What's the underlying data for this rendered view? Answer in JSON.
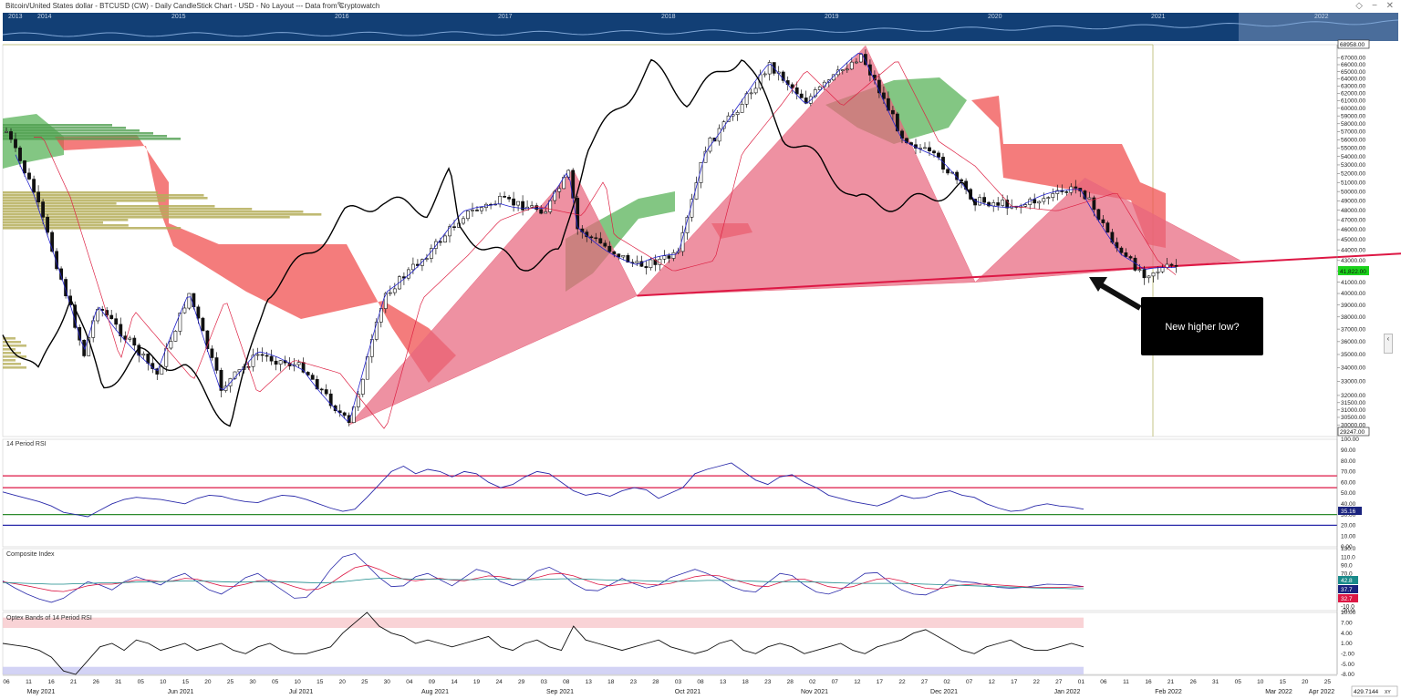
{
  "window": {
    "title": "Bitcoin/United States dollar - BTCUSD (CW) - Daily CandleStick Chart - USD - No Layout --- Data from Cryptowatch",
    "overview_years": [
      "2013",
      "2014",
      "2015",
      "2016",
      "2017",
      "2018",
      "2019",
      "2020",
      "2021",
      "2022"
    ]
  },
  "colors": {
    "bull_cloud": "#5ab35a",
    "bear_cloud": "#f05050",
    "pattern": "#e8677e",
    "support_line": "#dd1744",
    "rsi_band": "#dd1744",
    "price_badge": "#1bd21b",
    "lagging": "#000000",
    "tenkan": "#2222cc",
    "kijun": "#dd2244"
  },
  "annotation": {
    "text": "New higher low?"
  },
  "chart_data": [
    {
      "type": "candlestick",
      "title": "Bitcoin/United States dollar - BTCUSD (CW) - Daily CandleStick Chart - USD",
      "x_start": "2021-05-06",
      "x_end": "2022-04-11",
      "y_scale": "log",
      "ylim": [
        29247.0,
        68958.0
      ],
      "y_ticks": [
        "30000.00",
        "30500.00",
        "31000.00",
        "31500.00",
        "32000.00",
        "33000.00",
        "34000.00",
        "35000.00",
        "36000.00",
        "37000.00",
        "38000.00",
        "39000.00",
        "40000.00",
        "41000.00",
        "42000.00",
        "43000.00",
        "44000.00",
        "45000.00",
        "46000.00",
        "47000.00",
        "48000.00",
        "49000.00",
        "50000.00",
        "51000.00",
        "52000.00",
        "53000.00",
        "54000.00",
        "55000.00",
        "56000.00",
        "57000.00",
        "58000.00",
        "59000.00",
        "60000.00",
        "61000.00",
        "62000.00",
        "63000.00",
        "64000.00",
        "65000.00",
        "66000.00",
        "67000.00"
      ],
      "high_label": "68958.00",
      "low_label": "29247.00",
      "last_price_label": "41,822.00",
      "x_day_labels": [
        "06",
        "11",
        "16",
        "21",
        "26",
        "31",
        "05",
        "10",
        "15",
        "20",
        "25",
        "30",
        "05",
        "10",
        "15",
        "20",
        "25",
        "30",
        "04",
        "09",
        "14",
        "19",
        "24",
        "29",
        "03",
        "08",
        "13",
        "18",
        "23",
        "28",
        "03",
        "08",
        "13",
        "18",
        "23",
        "28",
        "02",
        "07",
        "12",
        "17",
        "22",
        "27",
        "02",
        "07",
        "12",
        "17",
        "22",
        "27",
        "01",
        "06",
        "11",
        "16",
        "21",
        "26",
        "31",
        "05",
        "10",
        "15",
        "20",
        "25",
        "02",
        "07",
        "12",
        "17",
        "22",
        "27",
        "01",
        "06",
        "11"
      ],
      "x_month_labels": [
        "May 2021",
        "Jun 2021",
        "Jul 2021",
        "Aug 2021",
        "Sep 2021",
        "Oct 2021",
        "Nov 2021",
        "Dec 2021",
        "Jan 2022",
        "Feb 2022",
        "Mar 2022",
        "Apr 2022"
      ],
      "closes": [
        {
          "date": "2021-05-06",
          "close": 57000
        },
        {
          "date": "2021-05-12",
          "close": 50000
        },
        {
          "date": "2021-05-19",
          "close": 40000
        },
        {
          "date": "2021-05-23",
          "close": 35000
        },
        {
          "date": "2021-05-26",
          "close": 39000
        },
        {
          "date": "2021-06-08",
          "close": 33500
        },
        {
          "date": "2021-06-15",
          "close": 40000
        },
        {
          "date": "2021-06-22",
          "close": 32500
        },
        {
          "date": "2021-06-30",
          "close": 35000
        },
        {
          "date": "2021-07-10",
          "close": 34000
        },
        {
          "date": "2021-07-20",
          "close": 30000
        },
        {
          "date": "2021-07-28",
          "close": 40000
        },
        {
          "date": "2021-08-07",
          "close": 44000
        },
        {
          "date": "2021-08-14",
          "close": 47500
        },
        {
          "date": "2021-08-22",
          "close": 49000
        },
        {
          "date": "2021-09-01",
          "close": 48000
        },
        {
          "date": "2021-09-06",
          "close": 52000
        },
        {
          "date": "2021-09-08",
          "close": 46000
        },
        {
          "date": "2021-09-21",
          "close": 42500
        },
        {
          "date": "2021-09-30",
          "close": 43500
        },
        {
          "date": "2021-10-06",
          "close": 55000
        },
        {
          "date": "2021-10-15",
          "close": 61500
        },
        {
          "date": "2021-10-20",
          "close": 66000
        },
        {
          "date": "2021-10-28",
          "close": 61000
        },
        {
          "date": "2021-11-09",
          "close": 67500
        },
        {
          "date": "2021-11-18",
          "close": 56500
        },
        {
          "date": "2021-11-26",
          "close": 53500
        },
        {
          "date": "2021-12-04",
          "close": 49000
        },
        {
          "date": "2021-12-14",
          "close": 48500
        },
        {
          "date": "2021-12-27",
          "close": 50500
        },
        {
          "date": "2022-01-05",
          "close": 43500
        },
        {
          "date": "2022-01-10",
          "close": 41800
        },
        {
          "date": "2022-01-17",
          "close": 42500
        }
      ],
      "pattern_fills": [
        {
          "points": [
            [
              "2021-07-20",
              30000
            ],
            [
              "2021-09-07",
              52500
            ],
            [
              "2021-09-21",
              39800
            ]
          ]
        },
        {
          "points": [
            [
              "2021-09-21",
              39800
            ],
            [
              "2021-11-10",
              68800
            ],
            [
              "2021-12-04",
              41000
            ]
          ]
        },
        {
          "points": [
            [
              "2021-12-04",
              41000
            ],
            [
              "2021-12-28",
              51500
            ],
            [
              "2022-01-31",
              43000
            ]
          ]
        }
      ],
      "support_line": {
        "from": [
          "2021-09-21",
          39800
        ],
        "to": [
          "2022-04-11",
          44500
        ]
      },
      "annotations": [
        "New higher low?"
      ]
    },
    {
      "type": "line",
      "title": "14 Period RSI",
      "ylim": [
        0,
        100
      ],
      "y_ticks": [
        "100.00",
        "90.00",
        "80.00",
        "70.00",
        "60.00",
        "50.00",
        "40.00",
        "30.00",
        "20.00",
        "10.00",
        "0.00"
      ],
      "levels": [
        {
          "value": 66,
          "color": "#dd1744"
        },
        {
          "value": 55,
          "color": "#dd1744"
        },
        {
          "value": 30,
          "color": "#2e8b2e"
        },
        {
          "value": 20,
          "color": "#2a2aaa"
        }
      ],
      "last_value": "35.16",
      "series": [
        {
          "values": [
            51,
            48,
            45,
            42,
            38,
            32,
            30,
            28,
            34,
            40,
            44,
            46,
            45,
            44,
            42,
            40,
            45,
            48,
            47,
            44,
            42,
            41,
            45,
            48,
            47,
            44,
            40,
            36,
            33,
            35,
            46,
            58,
            70,
            75,
            68,
            72,
            70,
            65,
            70,
            68,
            60,
            55,
            58,
            65,
            70,
            68,
            60,
            52,
            48,
            50,
            47,
            52,
            55,
            53,
            45,
            50,
            55,
            68,
            72,
            75,
            78,
            70,
            62,
            58,
            65,
            67,
            60,
            55,
            48,
            45,
            42,
            40,
            38,
            42,
            48,
            45,
            46,
            50,
            52,
            48,
            46,
            40,
            36,
            33,
            34,
            38,
            40,
            38,
            37,
            35
          ]
        }
      ]
    },
    {
      "type": "line",
      "title": "Composite Index",
      "ylim": [
        -20,
        130
      ],
      "y_ticks": [
        "130.0",
        "110.0",
        "90.0",
        "70.0",
        "50.0",
        "30.0",
        "10.0",
        "-10.0",
        "-20.0"
      ],
      "last_values": [
        "42.8",
        "37.7",
        "32.7"
      ],
      "series": [
        {
          "values": [
            52,
            35,
            20,
            8,
            0,
            10,
            30,
            50,
            42,
            30,
            50,
            62,
            52,
            42,
            60,
            70,
            50,
            30,
            20,
            38,
            60,
            70,
            50,
            30,
            10,
            12,
            40,
            80,
            110,
            118,
            90,
            60,
            38,
            40,
            62,
            70,
            55,
            40,
            60,
            80,
            72,
            50,
            40,
            52,
            76,
            85,
            70,
            45,
            30,
            28,
            42,
            58,
            45,
            35,
            42,
            60,
            70,
            80,
            70,
            56,
            38,
            28,
            25,
            48,
            70,
            65,
            42,
            25,
            20,
            30,
            50,
            70,
            72,
            50,
            30,
            20,
            18,
            30,
            55,
            50,
            48,
            42,
            36,
            34,
            36,
            40,
            44,
            43,
            42,
            38
          ]
        },
        {
          "values": [
            50,
            45,
            40,
            34,
            28,
            26,
            32,
            40,
            44,
            44,
            48,
            54,
            54,
            50,
            52,
            58,
            56,
            48,
            40,
            38,
            44,
            52,
            54,
            48,
            38,
            30,
            32,
            46,
            66,
            84,
            90,
            80,
            66,
            56,
            52,
            56,
            58,
            54,
            52,
            58,
            64,
            62,
            56,
            54,
            60,
            68,
            70,
            64,
            54,
            44,
            40,
            44,
            48,
            44,
            42,
            46,
            54,
            62,
            66,
            64,
            56,
            48,
            40,
            38,
            48,
            56,
            56,
            48,
            38,
            34,
            38,
            48,
            56,
            58,
            52,
            42,
            34,
            32,
            38,
            42,
            44,
            44,
            42,
            40,
            38,
            36,
            36,
            36,
            37,
            38
          ]
        },
        {
          "values": [
            48,
            47,
            46,
            45,
            44,
            44,
            45,
            46,
            47,
            47,
            48,
            49,
            50,
            50,
            51,
            52,
            52,
            51,
            50,
            49,
            49,
            50,
            50,
            50,
            49,
            48,
            47,
            48,
            50,
            53,
            56,
            58,
            58,
            57,
            56,
            56,
            56,
            55,
            55,
            55,
            56,
            56,
            56,
            55,
            55,
            56,
            57,
            57,
            56,
            55,
            54,
            53,
            53,
            52,
            51,
            51,
            51,
            52,
            53,
            53,
            53,
            52,
            51,
            50,
            50,
            50,
            50,
            49,
            48,
            47,
            46,
            46,
            46,
            46,
            46,
            45,
            44,
            43,
            42,
            41,
            40,
            39,
            38,
            37,
            36,
            35,
            34,
            34,
            33,
            33
          ]
        }
      ]
    },
    {
      "type": "area",
      "title": "Optex Bands of 14 Period RSI",
      "ylim": [
        -8,
        10
      ],
      "y_ticks": [
        "10.00",
        "7.00",
        "4.00",
        "1.00",
        "-2.00",
        "-5.00",
        "-8.00"
      ],
      "series": [
        {
          "values": [
            1,
            0.5,
            0,
            -1,
            -3,
            -7,
            -8,
            -4,
            0,
            1,
            -1,
            2,
            1,
            -1,
            0,
            1,
            -1,
            0,
            1,
            -1,
            -2,
            0,
            1,
            -1,
            -2,
            -2,
            -1,
            0,
            4,
            7,
            10,
            6,
            4,
            3,
            1,
            2,
            1,
            0,
            1,
            2,
            3,
            0,
            -1,
            1,
            2,
            0,
            -1,
            6,
            2,
            1,
            0,
            -1,
            0,
            1,
            2,
            0,
            -1,
            -2,
            -1,
            1,
            2,
            -1,
            -2,
            0,
            1,
            0,
            -2,
            -1,
            0,
            1,
            -1,
            -2,
            0,
            1,
            2,
            4,
            5,
            3,
            1,
            -1,
            -2,
            0,
            1,
            2,
            0,
            -1,
            -1,
            0,
            1,
            0
          ]
        }
      ]
    }
  ],
  "footer": {
    "zoom": "429.7144",
    "xy": "XY"
  }
}
